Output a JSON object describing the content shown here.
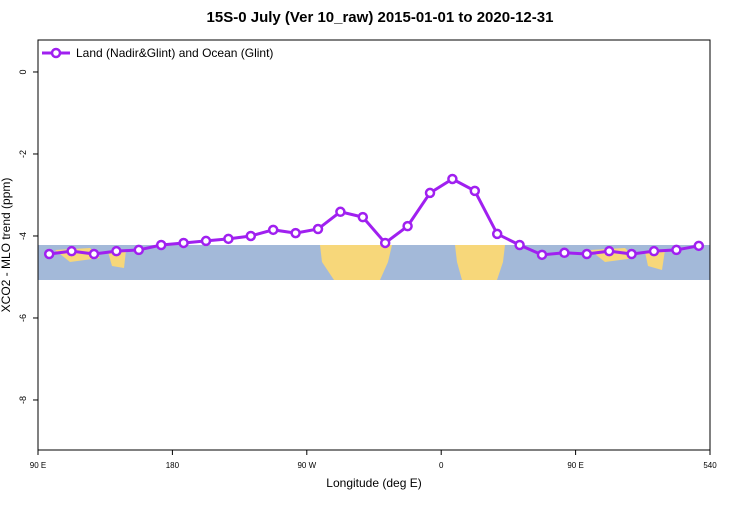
{
  "chart_data": {
    "type": "line",
    "title": "15S-0 July (Ver 10_raw)   2015-01-01 to 2020-12-31",
    "x_label": "Longitude (deg E)",
    "y_label": "XCO2 - MLO trend (ppm)",
    "x": [
      97.5,
      112.5,
      127.5,
      142.5,
      157.5,
      172.5,
      187.5,
      202.5,
      217.5,
      232.5,
      247.5,
      262.5,
      277.5,
      292.5,
      307.5,
      322.5,
      337.5,
      352.5,
      367.5,
      382.5,
      397.5,
      412.5,
      427.5,
      442.5,
      457.5,
      472.5,
      487.5,
      502.5,
      517.5,
      532.5
    ],
    "series": [
      {
        "name": "Land (Nadir&Glint) and Ocean (Glint)",
        "color": "#a020f0",
        "values": [
          -4.44,
          -4.37,
          -4.44,
          -4.37,
          -4.34,
          -4.22,
          -4.17,
          -4.12,
          -4.07,
          -4.0,
          -3.85,
          -3.93,
          -3.83,
          -3.41,
          -3.54,
          -4.17,
          -3.76,
          -2.95,
          -2.61,
          -2.9,
          -3.95,
          -4.22,
          -4.46,
          -4.41,
          -4.44,
          -4.37,
          -4.44,
          -4.37,
          -4.34,
          -4.24
        ]
      }
    ],
    "xlim": [
      90,
      540
    ],
    "xticks": [
      {
        "value": 90,
        "label": "90 E"
      },
      180,
      {
        "value": 270,
        "label": "90 W"
      },
      {
        "value": 360,
        "label": "0"
      },
      {
        "value": 450,
        "label": "90 E"
      },
      540
    ],
    "ylim": [
      0.78,
      -9.22
    ],
    "yticks": [
      0,
      -2,
      -4,
      -6,
      -8
    ],
    "legend": "top-left"
  }
}
